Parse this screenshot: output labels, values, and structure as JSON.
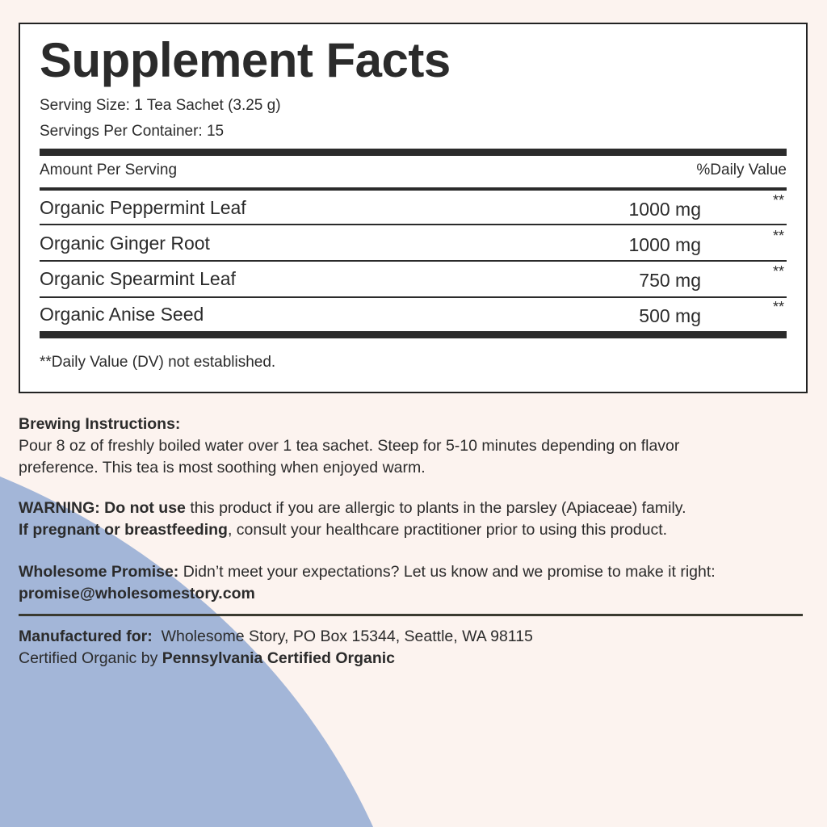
{
  "colors": {
    "background": "#fcf3ef",
    "accent_shape": "#a3b6d8",
    "text": "#2b2b2b"
  },
  "facts": {
    "title": "Supplement Facts",
    "serving_size": "Serving Size: 1 Tea Sachet (3.25 g)",
    "servings_per_container": "Servings Per Container: 15",
    "amount_header": "Amount Per Serving",
    "dv_header": "%Daily Value",
    "rows": [
      {
        "name": "Organic Peppermint Leaf",
        "amount": "1000 mg",
        "dv": "**"
      },
      {
        "name": "Organic Ginger Root",
        "amount": "1000 mg",
        "dv": "**"
      },
      {
        "name": "Organic Spearmint Leaf",
        "amount": "750 mg",
        "dv": "**"
      },
      {
        "name": "Organic Anise Seed",
        "amount": "500 mg",
        "dv": "**"
      }
    ],
    "footnote": "**Daily Value (DV) not established."
  },
  "brewing": {
    "heading": "Brewing Instructions:",
    "line1": "Pour 8 oz of freshly boiled water over 1 tea sachet. Steep for 5-10 minutes depending on flavor",
    "line2": "preference. This tea is most soothing when enjoyed warm."
  },
  "warning": {
    "bold1": "WARNING: Do not use",
    "text1": " this product if you are allergic to plants in the parsley (Apiaceae) family.",
    "bold2": "If pregnant or breastfeeding",
    "text2": ", consult your healthcare practitioner prior to using this product."
  },
  "promise": {
    "bold": "Wholesome Promise:",
    "text": " Didn’t meet your expectations? Let us know and we promise to make it right:",
    "email": "promise@wholesomestory.com"
  },
  "manufacturer": {
    "bold": "Manufactured for:",
    "text": "  Wholesome Story, PO Box 15344, Seattle, WA 98115"
  },
  "certified": {
    "text": "Certified Organic by ",
    "bold": "Pennsylvania Certified Organic"
  }
}
